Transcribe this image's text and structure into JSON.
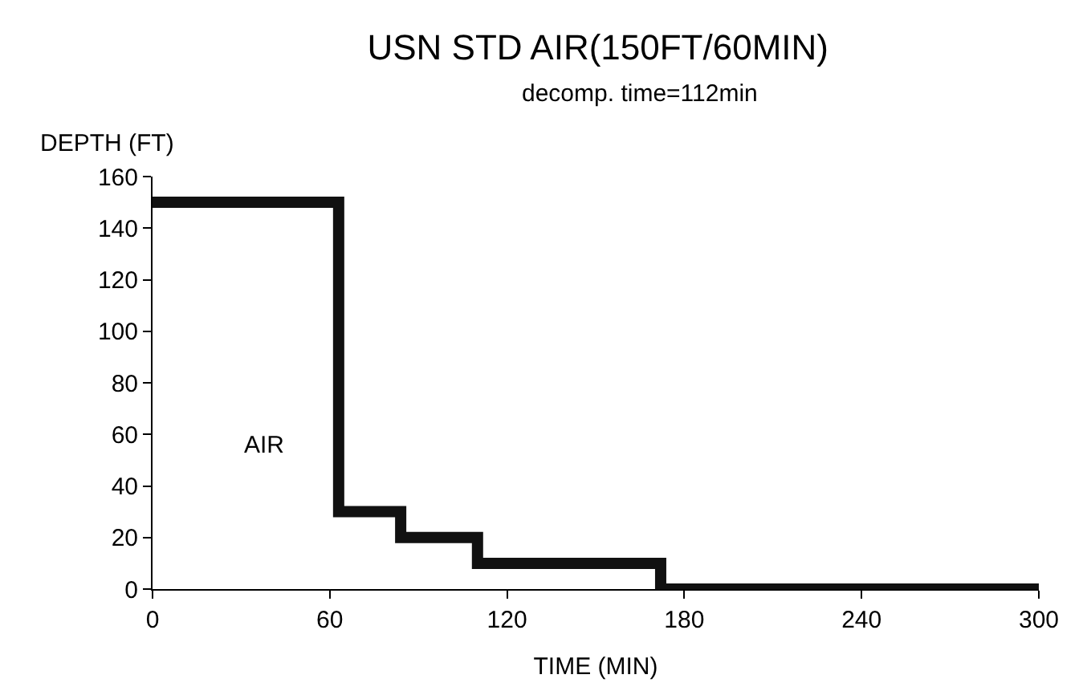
{
  "chart_data": {
    "type": "step",
    "title": "USN STD AIR(150FT/60MIN)",
    "subtitle": "decomp. time=112min",
    "xlabel": "TIME (MIN)",
    "ylabel": "DEPTH (FT)",
    "x": [
      0,
      63,
      84,
      110,
      172,
      300
    ],
    "series": [
      {
        "color": "#111111",
        "values": [
          150,
          30,
          20,
          10,
          0,
          0
        ]
      }
    ],
    "xlim": [
      0,
      300
    ],
    "xticks": [
      0,
      60,
      120,
      180,
      240,
      300
    ],
    "ylim": [
      0,
      160
    ],
    "yticks": [
      0,
      20,
      40,
      60,
      80,
      100,
      120,
      140,
      160
    ],
    "annotations": [
      "AIR"
    ]
  }
}
